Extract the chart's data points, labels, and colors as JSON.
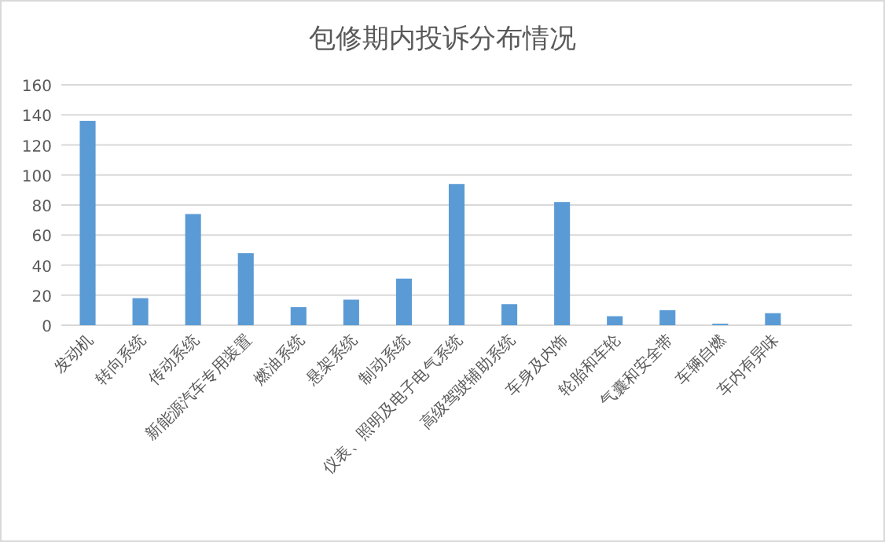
{
  "chart_data": {
    "type": "bar",
    "title": "包修期内投诉分布情况",
    "categories": [
      "发动机",
      "转向系统",
      "传动系统",
      "新能源汽车专用装置",
      "燃油系统",
      "悬架系统",
      "制动系统",
      "仪表、照明及电子电气系统",
      "高级驾驶辅助系统",
      "车身及内饰",
      "轮胎和车轮",
      "气囊和安全带",
      "车辆自燃",
      "车内有异味",
      null
    ],
    "values": [
      136,
      18,
      74,
      48,
      12,
      17,
      31,
      94,
      14,
      82,
      6,
      10,
      1,
      8,
      null
    ],
    "color": "#5b9bd5",
    "ylim": [
      0,
      160
    ],
    "yticks": [
      0,
      20,
      40,
      60,
      80,
      100,
      120,
      140,
      160
    ],
    "grid": "y"
  }
}
